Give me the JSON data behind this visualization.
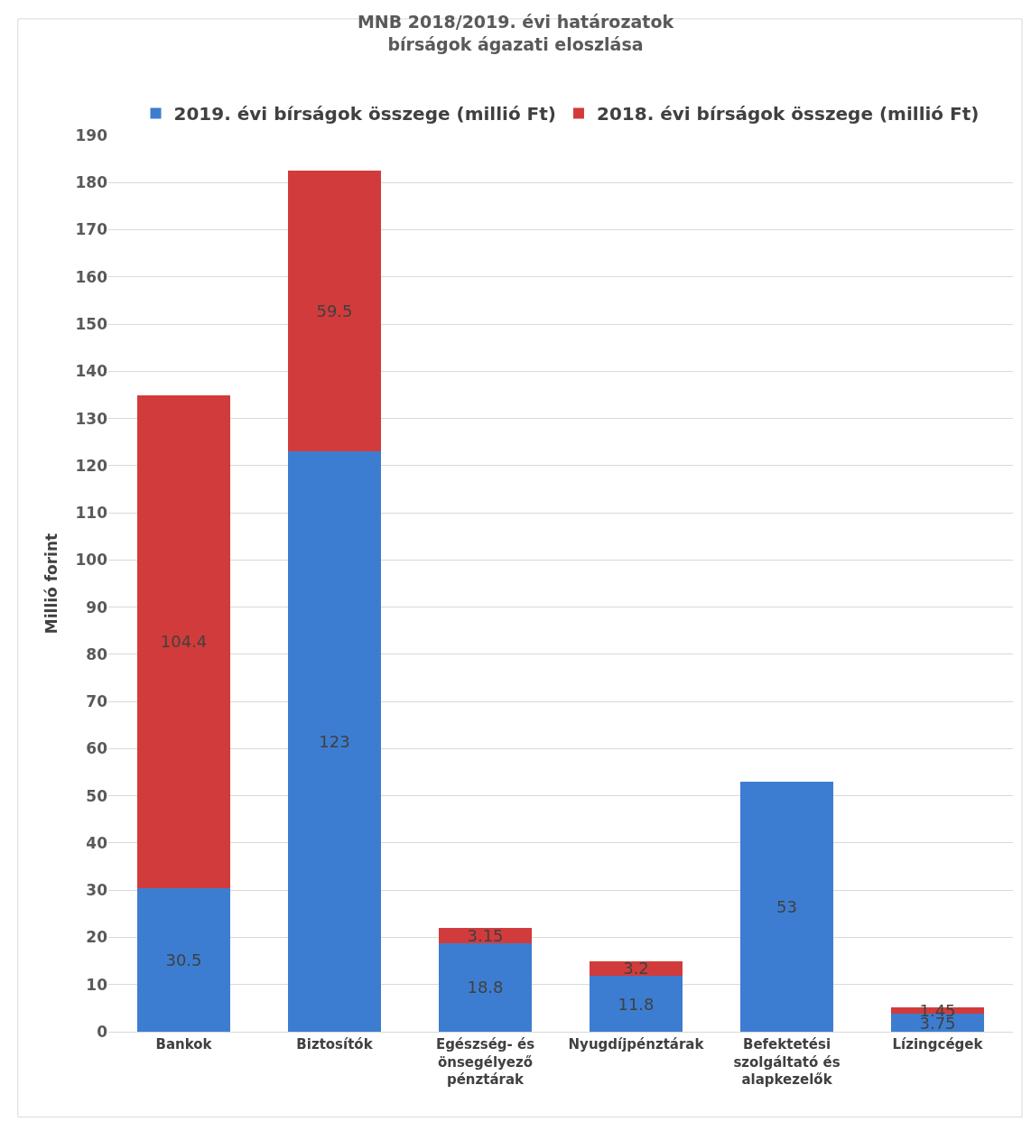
{
  "chart_data": {
    "type": "bar",
    "title": "MNB 2018/2019. évi határozatok\nbírságok ágazati eloszlása",
    "ylabel": "Millió forint",
    "categories": [
      "Bankok",
      "Biztosítók",
      "Egészség- és önsegélyező pénztárak",
      "Nyugdíjpénztárak",
      "Befektetési szolgáltató és alapkezelők",
      "Lízingcégek"
    ],
    "series": [
      {
        "name": "2019. évi bírságok összege (millió Ft)",
        "color": "#3d7dd1",
        "values": [
          30.5,
          123,
          18.8,
          11.8,
          53,
          3.75
        ]
      },
      {
        "name": "2018. évi bírságok összege (millió Ft)",
        "color": "#d23b3b",
        "values": [
          104.4,
          59.5,
          3.15,
          3.2,
          null,
          1.45
        ]
      }
    ],
    "stacked": true,
    "data_labels": true,
    "ylim": [
      0,
      190
    ],
    "yticks": [
      0,
      10,
      20,
      30,
      40,
      50,
      60,
      70,
      80,
      90,
      100,
      110,
      120,
      130,
      140,
      150,
      160,
      170,
      180,
      190
    ],
    "grid": "y",
    "legend": "top"
  }
}
